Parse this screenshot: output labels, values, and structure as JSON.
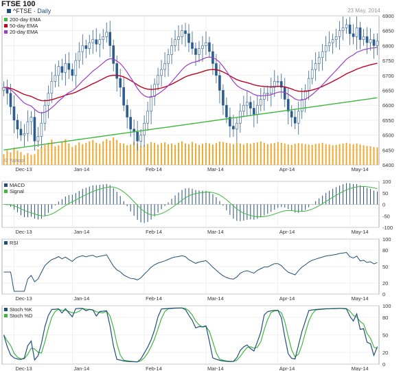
{
  "header": {
    "title": "FTSE 100",
    "symbol": "^FTSE",
    "interval": "Daily",
    "date": "23 May, 2014"
  },
  "chart_data": [
    {
      "type": "candlestick",
      "panel": "price",
      "legend": [
        "200-day EMA",
        "50-day EMA",
        "20-day EMA"
      ],
      "legend_colors": [
        "#3db83d",
        "#c0001f",
        "#9b3cc4"
      ],
      "legend_placement": "top-left",
      "watermark": "© Yahoo!",
      "ylim": [
        6400,
        6900
      ],
      "yticks": [
        6400,
        6450,
        6500,
        6550,
        6600,
        6650,
        6700,
        6750,
        6800,
        6850,
        6900
      ],
      "x_labels": [
        "Dec-13",
        "Jan-14",
        "Feb-14",
        "Mar-14",
        "Apr-14",
        "May-14"
      ],
      "x_label_index": [
        3,
        20,
        41,
        59,
        80,
        101
      ],
      "close": [
        6660,
        6640,
        6595,
        6550,
        6520,
        6500,
        6505,
        6545,
        6560,
        6480,
        6495,
        6540,
        6600,
        6640,
        6680,
        6700,
        6730,
        6710,
        6740,
        6720,
        6700,
        6750,
        6780,
        6800,
        6790,
        6810,
        6820,
        6805,
        6820,
        6830,
        6845,
        6800,
        6740,
        6690,
        6660,
        6600,
        6560,
        6520,
        6510,
        6480,
        6500,
        6540,
        6580,
        6630,
        6670,
        6700,
        6720,
        6740,
        6770,
        6800,
        6820,
        6830,
        6850,
        6840,
        6810,
        6790,
        6770,
        6790,
        6800,
        6810,
        6780,
        6740,
        6700,
        6650,
        6600,
        6560,
        6530,
        6520,
        6540,
        6580,
        6600,
        6610,
        6590,
        6570,
        6600,
        6620,
        6640,
        6640,
        6660,
        6680,
        6680,
        6660,
        6620,
        6580,
        6560,
        6540,
        6580,
        6620,
        6650,
        6690,
        6720,
        6740,
        6760,
        6780,
        6800,
        6810,
        6820,
        6830,
        6850,
        6860,
        6870,
        6840,
        6830,
        6860,
        6820,
        6830,
        6810,
        6820,
        6800,
        6815
      ],
      "volume": [
        0.3,
        0.41,
        0.35,
        0.48,
        0.4,
        0.36,
        0.27,
        0.33,
        0.28,
        0.3,
        0.44,
        0.5,
        0.56,
        0.62,
        0.71,
        0.52,
        0.55,
        0.66,
        0.72,
        0.6,
        0.5,
        0.55,
        0.63,
        0.58,
        0.62,
        0.66,
        0.7,
        0.62,
        0.59,
        0.66,
        0.72,
        0.68,
        0.77,
        0.7,
        0.61,
        0.6,
        0.55,
        0.57,
        0.64,
        0.6,
        0.52,
        0.55,
        0.59,
        0.64,
        0.62,
        0.57,
        0.61,
        0.63,
        0.58,
        0.6,
        0.56,
        0.62,
        0.66,
        0.6,
        0.58,
        0.64,
        0.6,
        0.56,
        0.59,
        0.62,
        0.6,
        0.57,
        0.61,
        0.65,
        0.64,
        0.62,
        0.6,
        0.58,
        0.63,
        0.6,
        0.57,
        0.61,
        0.59,
        0.62,
        0.63,
        0.66,
        0.62,
        0.58,
        0.6,
        0.61,
        0.64,
        0.62,
        0.6,
        0.57,
        0.56,
        0.59,
        0.61,
        0.6,
        0.58,
        0.57,
        0.56,
        0.59,
        0.6,
        0.62,
        0.58,
        0.57,
        0.55,
        0.56,
        0.58,
        0.6,
        0.62,
        0.59,
        0.58,
        0.6,
        0.57,
        0.55,
        0.53,
        0.52,
        0.5,
        0.49
      ]
    },
    {
      "type": "bar+line",
      "panel": "macd",
      "legend": [
        "MACD",
        "Signal"
      ],
      "legend_colors": [
        "#1f4e79",
        "#3db83d"
      ],
      "legend_placement": "top-left",
      "ylim": [
        -100,
        100
      ],
      "yticks": [
        -100,
        -50,
        0,
        50,
        100
      ],
      "x_labels": [
        "Dec-13",
        "Jan-14",
        "Feb-14",
        "Mar-14",
        "Apr-14",
        "May-14"
      ]
    },
    {
      "type": "line",
      "panel": "rsi",
      "legend": [
        "RSI"
      ],
      "legend_colors": [
        "#1f4e79"
      ],
      "legend_placement": "top-left",
      "ylim": [
        0,
        100
      ],
      "yticks": [
        0,
        20,
        50,
        80,
        100
      ],
      "x_labels": [
        "Dec-13",
        "Jan-14",
        "Feb-14",
        "Mar-14",
        "Apr-14",
        "May-14"
      ]
    },
    {
      "type": "line",
      "panel": "stochastic",
      "legend": [
        "Stoch %K",
        "Stoch %D"
      ],
      "legend_colors": [
        "#1f4e79",
        "#3db83d"
      ],
      "legend_placement": "top-left",
      "ylim": [
        0,
        100
      ],
      "yticks": [
        0,
        20,
        50,
        80,
        100
      ],
      "x_labels": [
        "Dec-13",
        "Jan-14",
        "Feb-14",
        "Mar-14",
        "Apr-14",
        "May-14"
      ]
    }
  ]
}
